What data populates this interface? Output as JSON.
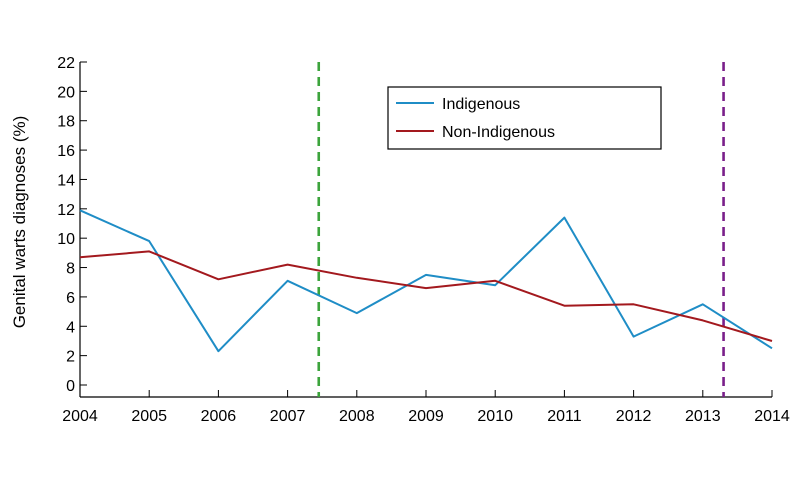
{
  "chart_data": {
    "type": "line",
    "title": "",
    "xlabel": "",
    "ylabel": "Genital warts diagnoses (%)",
    "x": [
      2004,
      2005,
      2006,
      2007,
      2008,
      2009,
      2010,
      2011,
      2012,
      2013,
      2014
    ],
    "xlim": [
      2004,
      2014
    ],
    "ylim": [
      0,
      22
    ],
    "yticks": [
      0,
      2,
      4,
      6,
      8,
      10,
      12,
      14,
      16,
      18,
      20,
      22
    ],
    "grid": false,
    "legend_position": "top-right",
    "series": [
      {
        "name": "Indigenous",
        "color": "#1f8dc6",
        "values": [
          11.9,
          9.8,
          2.3,
          7.1,
          4.9,
          7.5,
          6.8,
          11.4,
          3.3,
          5.5,
          2.5
        ]
      },
      {
        "name": "Non-Indigenous",
        "color": "#a3191e",
        "values": [
          8.7,
          9.1,
          7.2,
          8.2,
          7.3,
          6.6,
          7.1,
          5.4,
          5.5,
          4.4,
          3.0
        ]
      }
    ],
    "reference_lines": [
      {
        "x": 2007.45,
        "color": "#3ca43c",
        "style": "dashed"
      },
      {
        "x": 2013.3,
        "color": "#7a1f8a",
        "style": "dashed"
      }
    ]
  }
}
